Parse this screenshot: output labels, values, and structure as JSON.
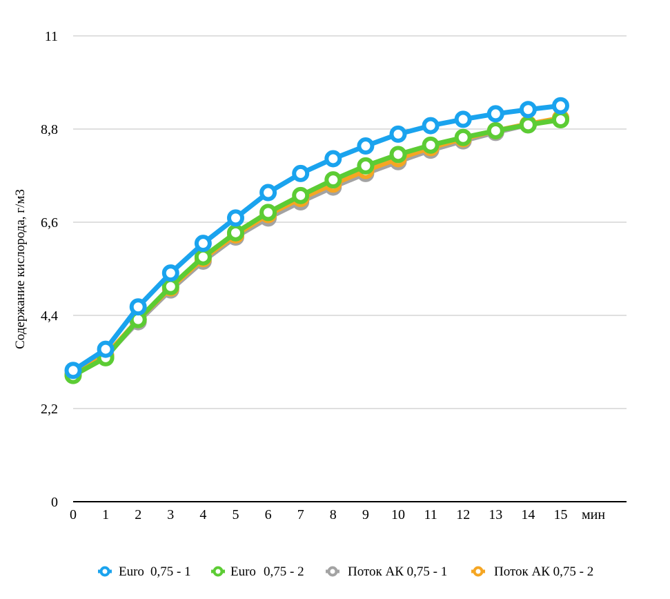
{
  "chart_data": {
    "type": "line",
    "title": "",
    "ylabel": "Содержание кислорода, г/м3",
    "xunit": "мин",
    "x": [
      0,
      1,
      2,
      3,
      4,
      5,
      6,
      7,
      8,
      9,
      10,
      11,
      12,
      13,
      14,
      15
    ],
    "yticks": [
      "0",
      "2,2",
      "4,4",
      "6,6",
      "8,8",
      "11"
    ],
    "ylim": [
      0,
      11
    ],
    "grid": true,
    "legend_position": "bottom",
    "series": [
      {
        "name_parts": [
          "Euro",
          "0,75 - 1"
        ],
        "color": "#1aa3ee",
        "values": [
          3.1,
          3.6,
          4.6,
          5.4,
          6.1,
          6.7,
          7.3,
          7.75,
          8.1,
          8.4,
          8.68,
          8.88,
          9.03,
          9.16,
          9.26,
          9.35
        ]
      },
      {
        "name_parts": [
          "Euro",
          "0,75 - 2"
        ],
        "color": "#5ccc34",
        "values": [
          2.98,
          3.4,
          4.3,
          5.08,
          5.78,
          6.35,
          6.83,
          7.23,
          7.6,
          7.93,
          8.2,
          8.42,
          8.6,
          8.76,
          8.9,
          9.02
        ]
      },
      {
        "name_parts": [
          "Поток АК 0,75 - 1"
        ],
        "color": "#a3a3a3",
        "values": [
          3.0,
          3.43,
          4.25,
          5.0,
          5.68,
          6.25,
          6.7,
          7.08,
          7.43,
          7.75,
          8.03,
          8.3,
          8.52,
          8.72,
          8.9,
          9.06
        ]
      },
      {
        "name_parts": [
          "Поток АК 0,75 - 2"
        ],
        "color": "#f5a623",
        "values": [
          3.02,
          3.45,
          4.3,
          5.05,
          5.74,
          6.3,
          6.78,
          7.16,
          7.5,
          7.82,
          8.1,
          8.36,
          8.57,
          8.76,
          8.92,
          9.06
        ]
      }
    ]
  }
}
